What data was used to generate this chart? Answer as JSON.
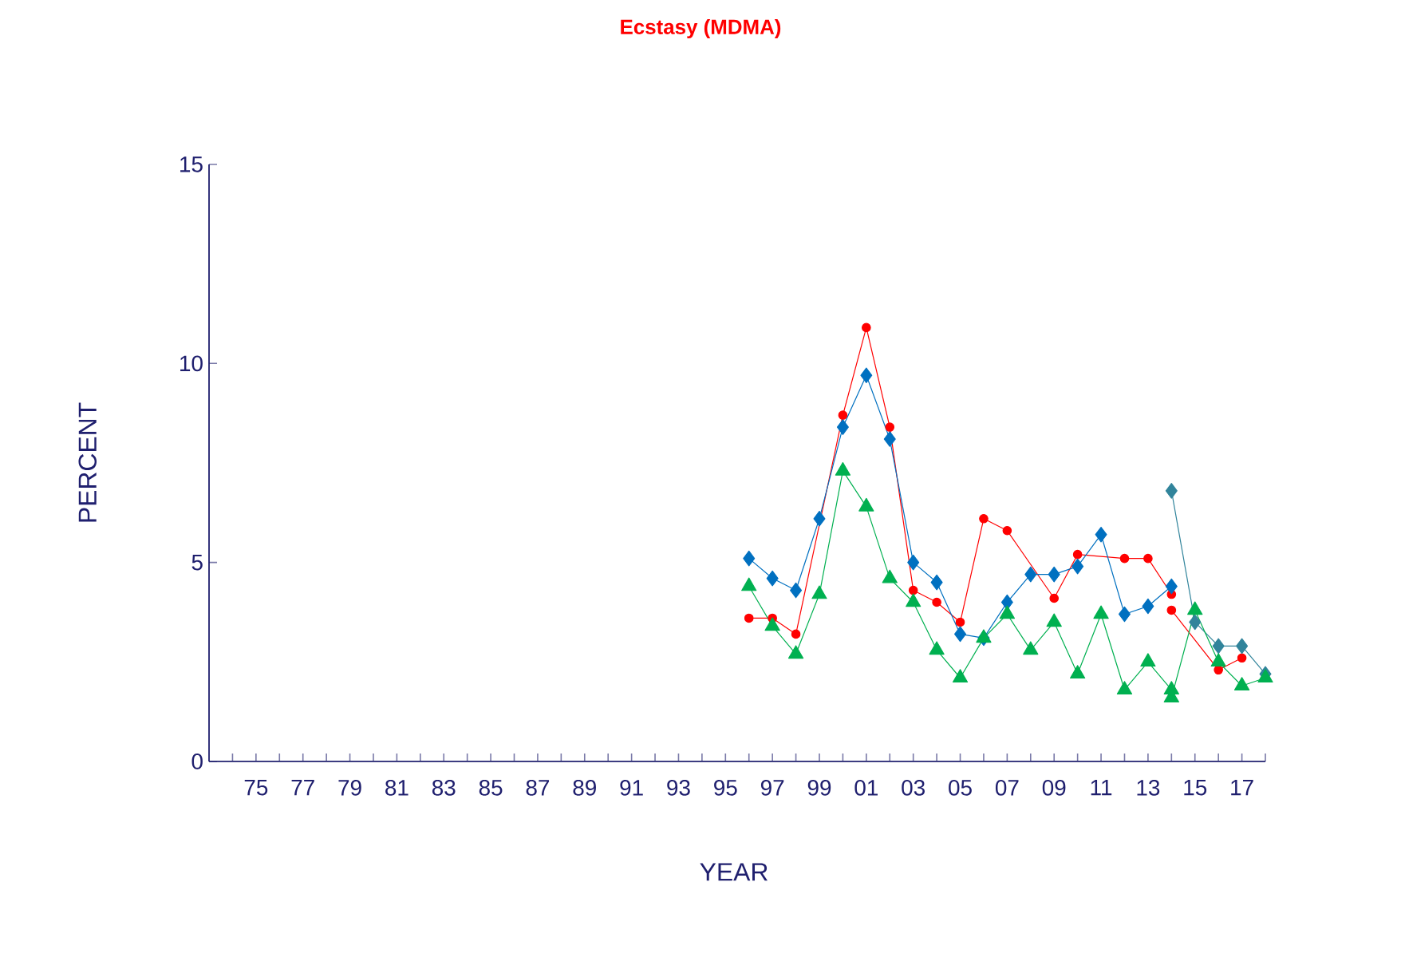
{
  "chart_data": {
    "type": "line",
    "title": "Ecstasy (MDMA)",
    "xlabel": "YEAR",
    "ylabel": "PERCENT",
    "xlim": [
      1973,
      2018
    ],
    "ylim": [
      0,
      15
    ],
    "yticks": [
      0,
      5,
      10,
      15
    ],
    "xticks": [
      {
        "value": 1974,
        "label": null
      },
      {
        "value": 1975,
        "label": "75"
      },
      {
        "value": 1976,
        "label": null
      },
      {
        "value": 1977,
        "label": "77"
      },
      {
        "value": 1978,
        "label": null
      },
      {
        "value": 1979,
        "label": "79"
      },
      {
        "value": 1980,
        "label": null
      },
      {
        "value": 1981,
        "label": "81"
      },
      {
        "value": 1982,
        "label": null
      },
      {
        "value": 1983,
        "label": "83"
      },
      {
        "value": 1984,
        "label": null
      },
      {
        "value": 1985,
        "label": "85"
      },
      {
        "value": 1986,
        "label": null
      },
      {
        "value": 1987,
        "label": "87"
      },
      {
        "value": 1988,
        "label": null
      },
      {
        "value": 1989,
        "label": "89"
      },
      {
        "value": 1990,
        "label": null
      },
      {
        "value": 1991,
        "label": "91"
      },
      {
        "value": 1992,
        "label": null
      },
      {
        "value": 1993,
        "label": "93"
      },
      {
        "value": 1994,
        "label": null
      },
      {
        "value": 1995,
        "label": "95"
      },
      {
        "value": 1996,
        "label": null
      },
      {
        "value": 1997,
        "label": "97"
      },
      {
        "value": 1998,
        "label": null
      },
      {
        "value": 1999,
        "label": "99"
      },
      {
        "value": 2000,
        "label": null
      },
      {
        "value": 2001,
        "label": "01"
      },
      {
        "value": 2002,
        "label": null
      },
      {
        "value": 2003,
        "label": "03"
      },
      {
        "value": 2004,
        "label": null
      },
      {
        "value": 2005,
        "label": "05"
      },
      {
        "value": 2006,
        "label": null
      },
      {
        "value": 2007,
        "label": "07"
      },
      {
        "value": 2008,
        "label": null
      },
      {
        "value": 2009,
        "label": "09"
      },
      {
        "value": 2010,
        "label": null
      },
      {
        "value": 2011,
        "label": "11"
      },
      {
        "value": 2012,
        "label": null
      },
      {
        "value": 2013,
        "label": "13"
      },
      {
        "value": 2014,
        "label": null
      },
      {
        "value": 2015,
        "label": "15"
      },
      {
        "value": 2016,
        "label": null
      },
      {
        "value": 2017,
        "label": "17"
      },
      {
        "value": 2018,
        "label": null
      }
    ],
    "series": [
      {
        "color": "#ff0000",
        "marker": "circle",
        "x": [
          1996,
          1997,
          1998,
          1999,
          2000,
          2001,
          2002,
          2003,
          2004,
          2005,
          2006,
          2007,
          2008,
          2009,
          2010,
          2011,
          2012,
          2013,
          2014
        ],
        "values": [
          3.6,
          3.6,
          3.2,
          null,
          8.7,
          10.9,
          8.4,
          4.3,
          4.0,
          3.5,
          6.1,
          5.8,
          null,
          4.1,
          5.2,
          null,
          5.1,
          5.1,
          4.2
        ]
      },
      {
        "color": "#ff0000",
        "marker": "circle",
        "x": [
          2014,
          2015,
          2016,
          2017
        ],
        "values": [
          3.8,
          null,
          2.3,
          2.6
        ]
      },
      {
        "color": "#00b050",
        "marker": "triangle",
        "x": [
          1996,
          1997,
          1998,
          1999,
          2000,
          2001,
          2002,
          2003,
          2004,
          2005,
          2006,
          2007,
          2008,
          2009,
          2010,
          2011,
          2012,
          2013,
          2014
        ],
        "values": [
          4.4,
          3.4,
          2.7,
          4.2,
          7.3,
          6.4,
          4.6,
          4.0,
          2.8,
          2.1,
          3.1,
          3.7,
          2.8,
          3.5,
          2.2,
          3.7,
          1.8,
          2.5,
          1.8
        ]
      },
      {
        "color": "#00b050",
        "marker": "triangle",
        "x": [
          2014,
          2015,
          2016,
          2017,
          2018
        ],
        "values": [
          1.6,
          3.8,
          2.5,
          1.9,
          2.1
        ]
      },
      {
        "color": "#0070c0",
        "marker": "diamond",
        "x": [
          1996,
          1997,
          1998,
          1999,
          2000,
          2001,
          2002,
          2003,
          2004,
          2005,
          2006,
          2007,
          2008,
          2009,
          2010,
          2011,
          2012,
          2013,
          2014
        ],
        "values": [
          5.1,
          4.6,
          4.3,
          6.1,
          8.4,
          9.7,
          8.1,
          5.0,
          4.5,
          3.2,
          3.1,
          4.0,
          4.7,
          4.7,
          4.9,
          5.7,
          3.7,
          3.9,
          4.4
        ]
      },
      {
        "color": "#31849b",
        "marker": "diamond",
        "x": [
          2014,
          2015,
          2016,
          2017,
          2018
        ],
        "values": [
          6.8,
          3.5,
          2.9,
          2.9,
          2.2
        ]
      }
    ]
  }
}
